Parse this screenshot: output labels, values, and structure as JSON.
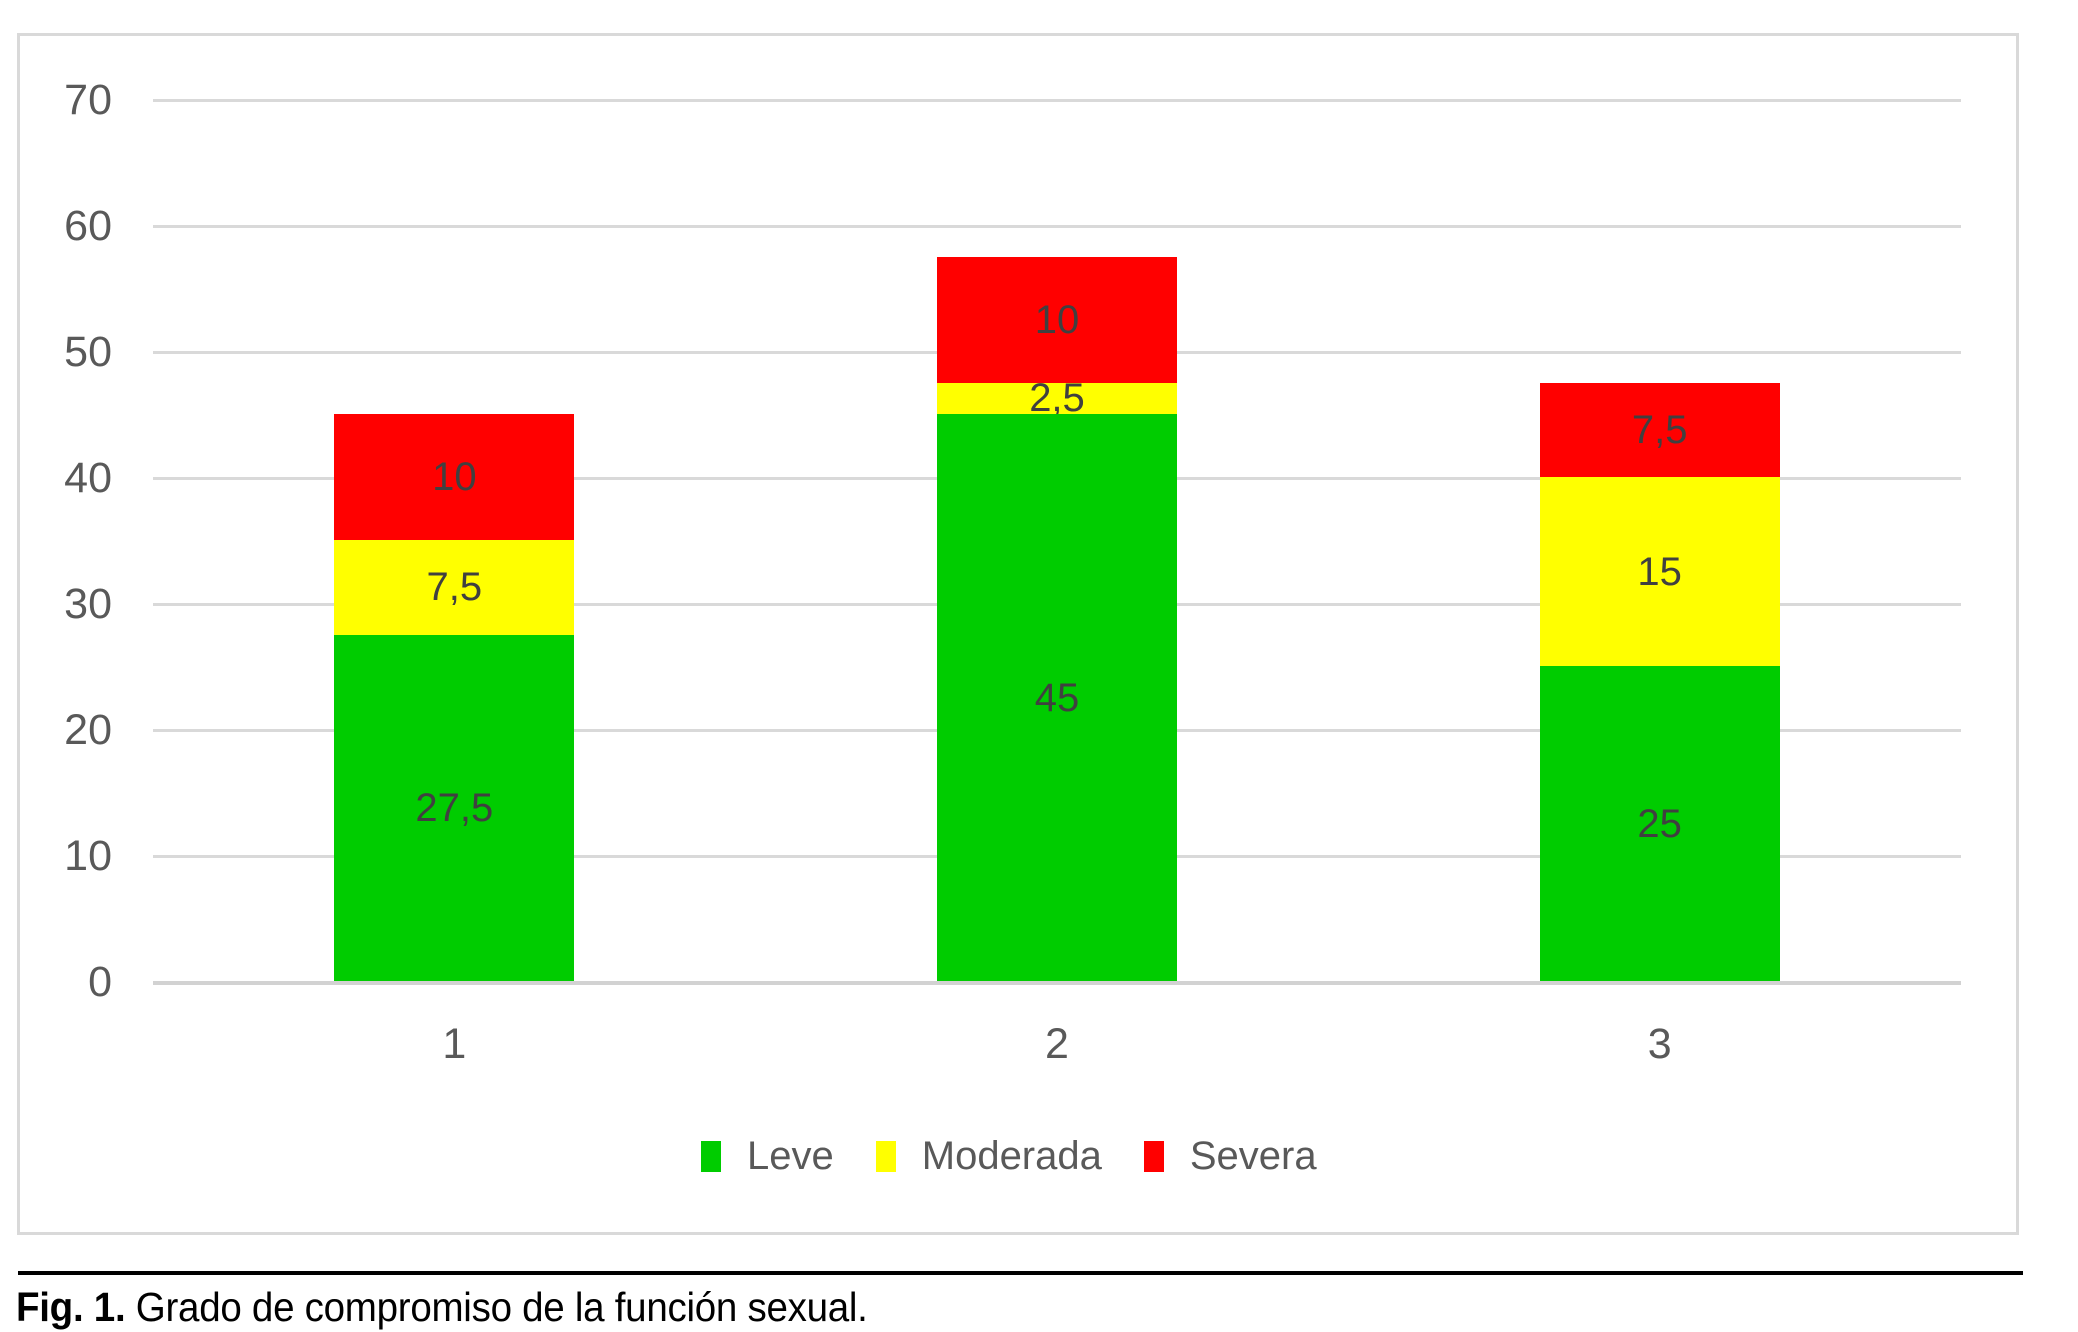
{
  "figure": {
    "caption_prefix": "Fig. 1.",
    "caption_text": " Grado de compromiso de la función sexual."
  },
  "chart_data": {
    "type": "bar",
    "stacked": true,
    "title": "",
    "xlabel": "",
    "ylabel": "",
    "categories": [
      "1",
      "2",
      "3"
    ],
    "series": [
      {
        "name": "Leve",
        "color": "#00CC00",
        "values": [
          27.5,
          45,
          25
        ],
        "value_labels": [
          "27,5",
          "45",
          "25"
        ]
      },
      {
        "name": "Moderada",
        "color": "#FFFF00",
        "values": [
          7.5,
          2.5,
          15
        ],
        "value_labels": [
          "7,5",
          "2,5",
          "15"
        ]
      },
      {
        "name": "Severa",
        "color": "#FF0000",
        "values": [
          10,
          10,
          7.5
        ],
        "value_labels": [
          "10",
          "10",
          "7,5"
        ]
      }
    ],
    "totals": [
      45,
      57.5,
      47.5
    ],
    "ylim": [
      0,
      70
    ],
    "yticks": [
      "0",
      "10",
      "20",
      "30",
      "40",
      "50",
      "60",
      "70"
    ],
    "grid": true,
    "legend_position": "bottom",
    "legend": [
      "Leve",
      "Moderada",
      "Severa"
    ]
  },
  "colors": {
    "grid_line": "#D9D9D9",
    "axis_line": "#D2D2D2",
    "chart_border": "#D9D9D9",
    "tick_label": "#595959",
    "category_label": "#595959",
    "data_label": "#404040",
    "legend_label": "#595959",
    "caption": "#000000"
  }
}
